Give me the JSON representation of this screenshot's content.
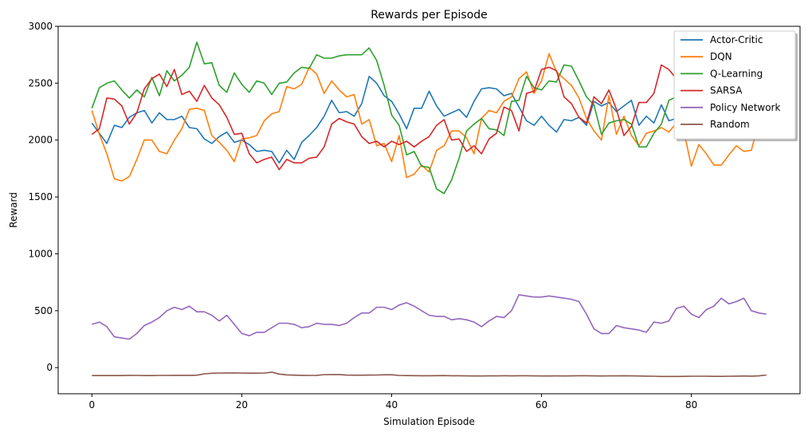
{
  "chart_data": {
    "type": "line",
    "title": "Rewards per Episode",
    "xlabel": "Simulation Episode",
    "ylabel": "Reward",
    "xlim": [
      -4.5,
      94.5
    ],
    "ylim": [
      -230,
      3000
    ],
    "xticks": [
      0,
      20,
      40,
      60,
      80
    ],
    "yticks": [
      0,
      500,
      1000,
      1500,
      2000,
      2500,
      3000
    ],
    "grid": false,
    "legend_position": "top-right",
    "series": [
      {
        "name": "Actor-Critic",
        "color": "#1f77b4",
        "values": [
          2150,
          2060,
          1970,
          2130,
          2110,
          2200,
          2240,
          2260,
          2150,
          2240,
          2180,
          2180,
          2210,
          2110,
          2100,
          2010,
          1970,
          2030,
          2070,
          1980,
          2000,
          1960,
          1900,
          1910,
          1900,
          1800,
          1910,
          1830,
          1980,
          2040,
          2110,
          2210,
          2350,
          2240,
          2250,
          2210,
          2320,
          2560,
          2500,
          2390,
          2340,
          2230,
          2100,
          2280,
          2280,
          2430,
          2300,
          2210,
          2240,
          2270,
          2200,
          2340,
          2450,
          2460,
          2450,
          2390,
          2410,
          2290,
          2170,
          2130,
          2210,
          2130,
          2070,
          2180,
          2170,
          2200,
          2130,
          2340,
          2300,
          2330,
          2250,
          2300,
          2350,
          2130,
          2210,
          2150,
          2310,
          2170,
          2190,
          2210,
          2200,
          2150,
          2170,
          2160,
          2190,
          2210,
          2190,
          2200,
          2170,
          2200,
          2180
        ]
      },
      {
        "name": "DQN",
        "color": "#ff7f0e",
        "values": [
          2260,
          2050,
          1880,
          1660,
          1640,
          1680,
          1830,
          2000,
          2000,
          1900,
          1880,
          2000,
          2100,
          2270,
          2280,
          2260,
          2040,
          1980,
          1910,
          1810,
          2010,
          2020,
          2040,
          2170,
          2230,
          2250,
          2470,
          2450,
          2490,
          2640,
          2580,
          2410,
          2520,
          2440,
          2380,
          2400,
          2140,
          2180,
          1950,
          1970,
          1810,
          2040,
          1670,
          1700,
          1780,
          1720,
          1910,
          1950,
          2080,
          2080,
          2020,
          1880,
          2190,
          2260,
          2240,
          2340,
          2380,
          2540,
          2600,
          2410,
          2520,
          2760,
          2600,
          2540,
          2480,
          2370,
          2190,
          2080,
          2000,
          2390,
          2050,
          2210,
          2040,
          1950,
          2060,
          2080,
          2110,
          2070,
          2150,
          2080,
          1770,
          1960,
          1880,
          1780,
          1780,
          1870,
          1950,
          1900,
          1910,
          2160,
          2160
        ]
      },
      {
        "name": "Q-Learning",
        "color": "#2ca02c",
        "values": [
          2280,
          2460,
          2500,
          2520,
          2440,
          2370,
          2440,
          2380,
          2550,
          2390,
          2610,
          2520,
          2570,
          2640,
          2860,
          2670,
          2680,
          2480,
          2420,
          2590,
          2490,
          2420,
          2520,
          2500,
          2400,
          2500,
          2510,
          2590,
          2640,
          2630,
          2750,
          2720,
          2720,
          2740,
          2750,
          2750,
          2750,
          2810,
          2700,
          2480,
          2220,
          2130,
          1870,
          1900,
          1770,
          1760,
          1570,
          1530,
          1650,
          1840,
          2080,
          2140,
          2190,
          2100,
          2090,
          2040,
          2340,
          2350,
          2560,
          2460,
          2440,
          2520,
          2510,
          2660,
          2650,
          2520,
          2380,
          2310,
          2050,
          2150,
          2170,
          2180,
          2140,
          1940,
          1940,
          2060,
          2140,
          2350,
          2380,
          2450,
          2470,
          2440,
          2430,
          2460,
          2470,
          2440,
          2450,
          2470,
          2460,
          2440,
          2450
        ]
      },
      {
        "name": "SARSA",
        "color": "#d62728",
        "values": [
          2050,
          2100,
          2370,
          2360,
          2300,
          2140,
          2240,
          2450,
          2540,
          2580,
          2470,
          2620,
          2400,
          2430,
          2340,
          2480,
          2370,
          2310,
          2200,
          2050,
          2060,
          1880,
          1800,
          1830,
          1850,
          1740,
          1830,
          1800,
          1800,
          1840,
          1850,
          1940,
          2140,
          2190,
          2160,
          2140,
          2030,
          1970,
          1990,
          1940,
          1990,
          1960,
          1990,
          1940,
          1990,
          2030,
          2130,
          2180,
          2000,
          2010,
          1900,
          1950,
          1880,
          2010,
          2060,
          2290,
          2260,
          2080,
          2410,
          2430,
          2620,
          2640,
          2610,
          2380,
          2320,
          2200,
          2150,
          2380,
          2320,
          2440,
          2270,
          2040,
          2120,
          2330,
          2330,
          2410,
          2660,
          2620,
          2540,
          2460,
          2470,
          2430,
          2450,
          2460,
          2460,
          2480,
          2450,
          2460,
          2440,
          2450,
          2450
        ]
      },
      {
        "name": "Policy Network",
        "color": "#9467bd",
        "values": [
          380,
          400,
          360,
          270,
          260,
          250,
          300,
          370,
          400,
          440,
          500,
          530,
          510,
          540,
          490,
          490,
          460,
          410,
          460,
          380,
          300,
          280,
          310,
          310,
          350,
          390,
          390,
          380,
          350,
          360,
          390,
          380,
          380,
          370,
          390,
          440,
          480,
          480,
          530,
          530,
          510,
          550,
          570,
          540,
          500,
          460,
          450,
          450,
          420,
          430,
          420,
          400,
          360,
          410,
          450,
          440,
          500,
          640,
          630,
          620,
          620,
          630,
          620,
          610,
          600,
          580,
          470,
          340,
          300,
          300,
          370,
          350,
          340,
          330,
          310,
          400,
          390,
          410,
          520,
          540,
          470,
          440,
          510,
          540,
          610,
          560,
          580,
          610,
          500,
          480,
          470
        ]
      },
      {
        "name": "Random",
        "color": "#8c564b",
        "values": [
          -70,
          -70,
          -70,
          -70,
          -70,
          -68,
          -69,
          -70,
          -70,
          -69,
          -69,
          -68,
          -68,
          -68,
          -67,
          -55,
          -50,
          -48,
          -47,
          -47,
          -48,
          -49,
          -49,
          -48,
          -40,
          -57,
          -64,
          -67,
          -68,
          -69,
          -68,
          -62,
          -61,
          -61,
          -66,
          -67,
          -67,
          -66,
          -65,
          -63,
          -63,
          -69,
          -70,
          -71,
          -72,
          -72,
          -71,
          -70,
          -72,
          -72,
          -73,
          -74,
          -74,
          -73,
          -73,
          -72,
          -73,
          -72,
          -72,
          -73,
          -74,
          -74,
          -73,
          -74,
          -73,
          -72,
          -72,
          -73,
          -74,
          -73,
          -73,
          -72,
          -73,
          -74,
          -75,
          -76,
          -78,
          -78,
          -78,
          -77,
          -76,
          -76,
          -76,
          -77,
          -77,
          -76,
          -75,
          -74,
          -75,
          -73,
          -65
        ]
      }
    ]
  }
}
